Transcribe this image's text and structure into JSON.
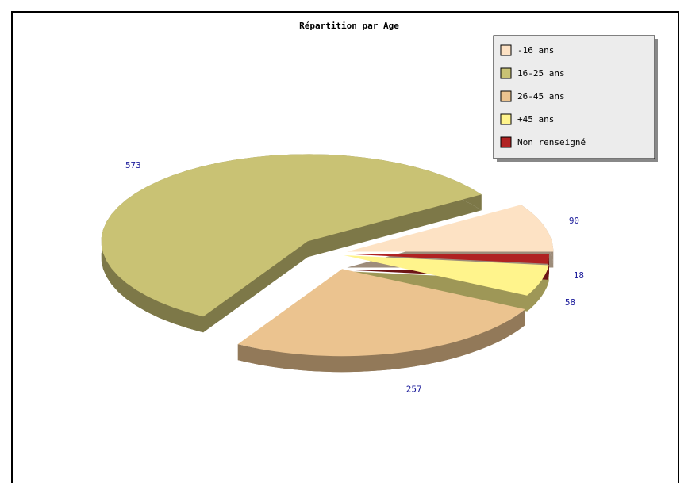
{
  "chart_data": {
    "type": "pie3d",
    "title": "Répartition par Age",
    "categories": [
      "-16 ans",
      "16-25 ans",
      "26-45 ans",
      "+45 ans",
      "Non renseigné"
    ],
    "values": [
      90,
      573,
      257,
      58,
      18
    ],
    "colors": [
      "#fde2c4",
      "#c9c274",
      "#ebc38f",
      "#fff48c",
      "#b02222"
    ],
    "legend": "upper right"
  }
}
